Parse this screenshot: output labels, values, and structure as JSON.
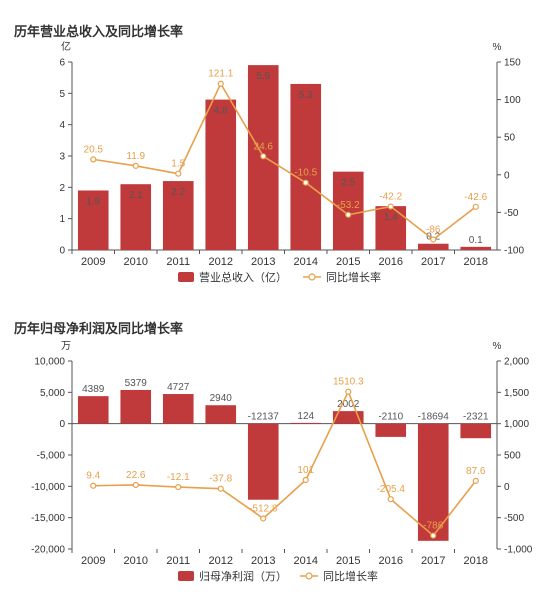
{
  "chart_data": [
    {
      "type": "bar",
      "title": "历年营业总收入及同比增长率",
      "categories": [
        "2009",
        "2010",
        "2011",
        "2012",
        "2013",
        "2014",
        "2015",
        "2016",
        "2017",
        "2018"
      ],
      "left_unit": "亿",
      "right_unit": "%",
      "left_axis": {
        "min": 0,
        "max": 6,
        "ticks": [
          "0",
          "1",
          "2",
          "3",
          "4",
          "5",
          "6"
        ]
      },
      "right_axis": {
        "min": -100,
        "max": 150,
        "ticks": [
          "-100",
          "-50",
          "0",
          "50",
          "100",
          "150"
        ]
      },
      "series": [
        {
          "name": "营业总收入（亿）",
          "kind": "bar",
          "axis": "left",
          "values": [
            1.9,
            2.1,
            2.2,
            4.8,
            5.9,
            5.3,
            2.5,
            1.4,
            0.2,
            0.1
          ],
          "labels": [
            "1.9",
            "2.1",
            "2.2",
            "4.8",
            "5.9",
            "5.3",
            "2.5",
            "1.4",
            "0.2",
            "0.1"
          ]
        },
        {
          "name": "同比增长率",
          "kind": "line",
          "axis": "right",
          "values": [
            20.5,
            11.9,
            1.5,
            121.1,
            24.6,
            -10.5,
            -53.2,
            -42.2,
            -86,
            -42.6
          ],
          "labels": [
            "20.5",
            "11.9",
            "1.5",
            "121.1",
            "24.6",
            "-10.5",
            "-53.2",
            "-42.2",
            "-86",
            "-42.6"
          ]
        }
      ],
      "colors": {
        "bar": "#c0393b",
        "line": "#e8a04a"
      },
      "legend_position": "bottom"
    },
    {
      "type": "bar",
      "title": "历年归母净利润及同比增长率",
      "categories": [
        "2009",
        "2010",
        "2011",
        "2012",
        "2013",
        "2014",
        "2015",
        "2016",
        "2017",
        "2018"
      ],
      "left_unit": "万",
      "right_unit": "%",
      "left_axis": {
        "min": -20000,
        "max": 10000,
        "ticks": [
          "-20,000",
          "-15,000",
          "-10,000",
          "-5,000",
          "0",
          "5,000",
          "10,000"
        ]
      },
      "right_axis": {
        "min": -1000,
        "max": 2000,
        "ticks": [
          "-1,000",
          "-500",
          "0",
          "500",
          "1,000",
          "1,500",
          "2,000"
        ]
      },
      "series": [
        {
          "name": "归母净利润（万）",
          "kind": "bar",
          "axis": "left",
          "values": [
            4389,
            5379,
            4727,
            2940,
            -12137,
            124,
            2002,
            -2110,
            -18694,
            -2321
          ],
          "labels": [
            "4389",
            "5379",
            "4727",
            "2940",
            "-12137",
            "124",
            "2002",
            "-2110",
            "-18694",
            "-2321"
          ]
        },
        {
          "name": "同比增长率",
          "kind": "line",
          "axis": "right",
          "values": [
            9.4,
            22.6,
            -12.1,
            -37.8,
            -512.8,
            101,
            1510.3,
            -205.4,
            -786,
            87.6
          ],
          "labels": [
            "9.4",
            "22.6",
            "-12.1",
            "-37.8",
            "-512.8",
            "101",
            "1510.3",
            "-205.4",
            "-786",
            "87.6"
          ]
        }
      ],
      "colors": {
        "bar": "#c0393b",
        "line": "#e8a04a"
      },
      "legend_position": "bottom"
    }
  ]
}
